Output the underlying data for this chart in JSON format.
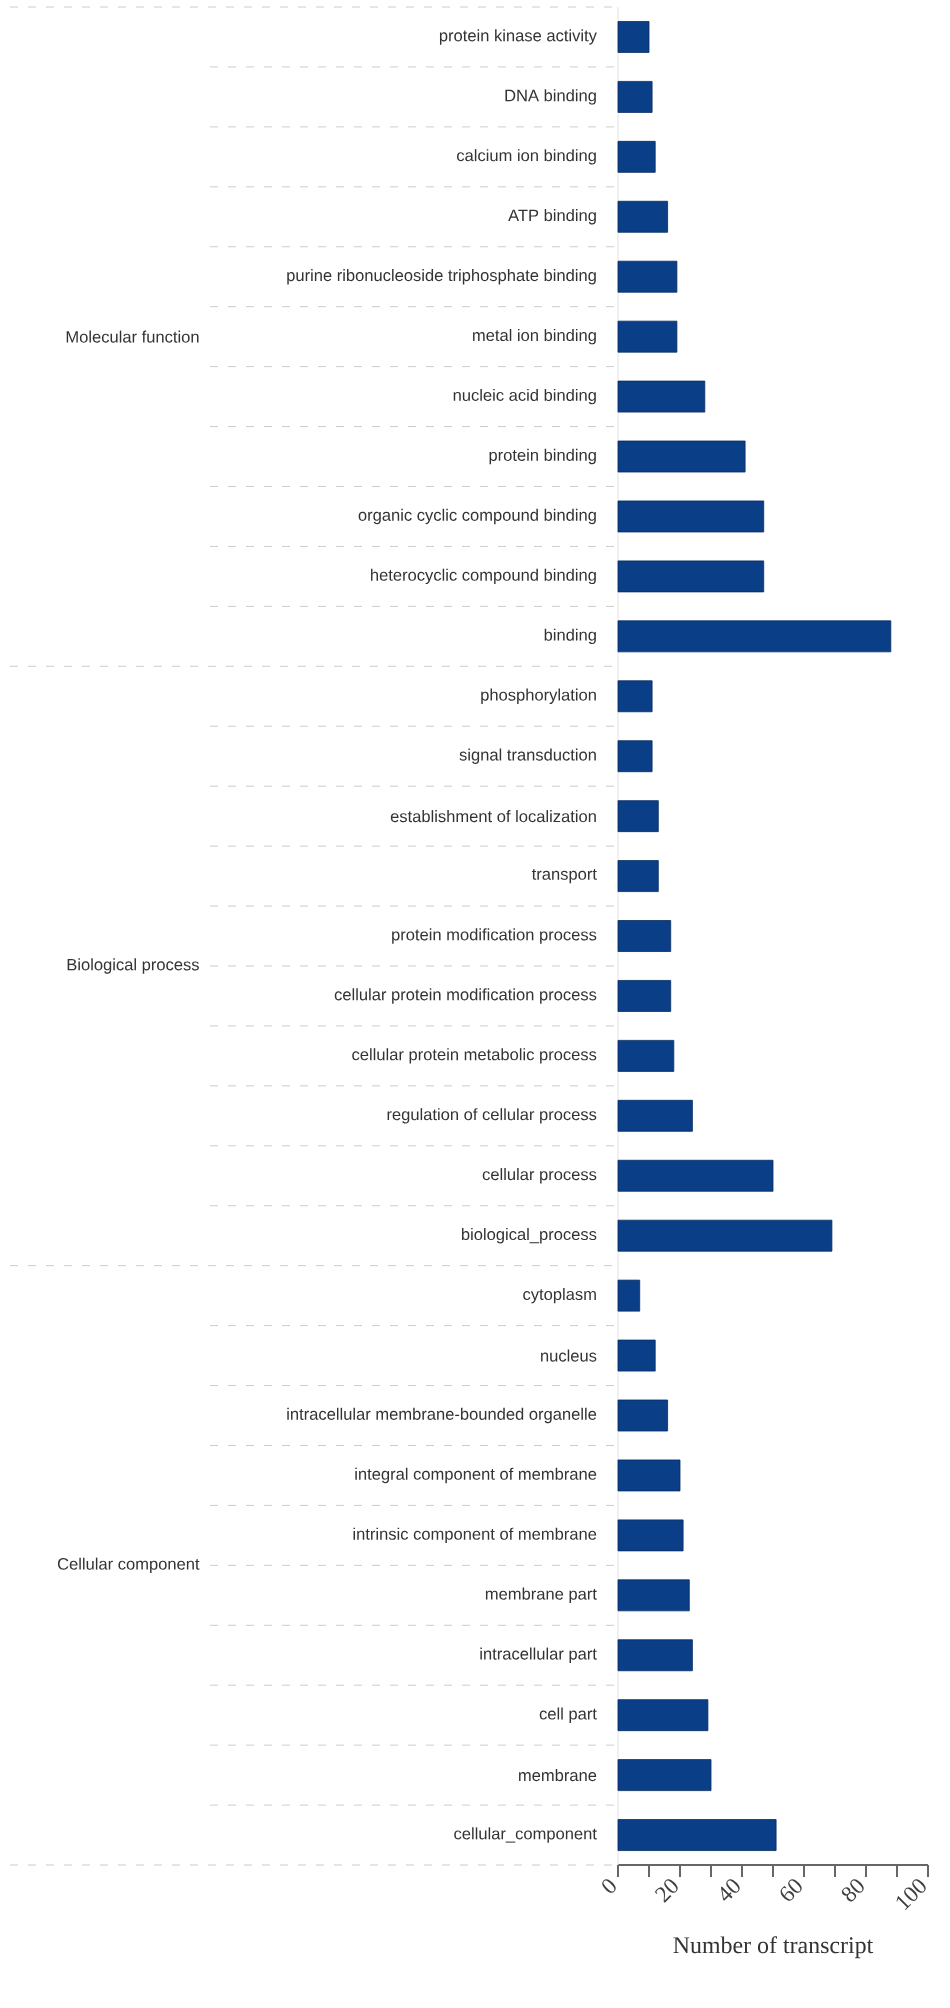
{
  "chart_data": {
    "type": "bar",
    "orientation": "horizontal",
    "xlabel": "Number of transcript",
    "categories": [
      "protein kinase activity",
      "DNA binding",
      "calcium ion binding",
      "ATP binding",
      "purine ribonucleoside triphosphate binding",
      "metal ion binding",
      "nucleic acid binding",
      "protein binding",
      "organic cyclic compound binding",
      "heterocyclic compound binding",
      "binding",
      "phosphorylation",
      "signal transduction",
      "establishment of localization",
      "transport",
      "protein modification process",
      "cellular protein modification process",
      "cellular protein metabolic process",
      "regulation of cellular process",
      "cellular process",
      "biological_process",
      "cytoplasm",
      "nucleus",
      "intracellular membrane-bounded organelle",
      "integral component of membrane",
      "intrinsic component of membrane",
      "membrane part",
      "intracellular part",
      "cell part",
      "membrane",
      "cellular_component"
    ],
    "values": [
      10,
      11,
      12,
      16,
      19,
      19,
      28,
      41,
      47,
      47,
      88,
      11,
      11,
      13,
      13,
      17,
      17,
      18,
      24,
      50,
      69,
      7,
      12,
      16,
      20,
      21,
      23,
      24,
      29,
      30,
      51
    ],
    "color": "#0a3f88",
    "xlim": [
      0,
      100
    ],
    "xticks": [
      0,
      {
        "value": 10,
        "label": null
      },
      20,
      {
        "value": 30,
        "label": null
      },
      40,
      {
        "value": 50,
        "label": null
      },
      60,
      {
        "value": 70,
        "label": null
      },
      80,
      {
        "value": 90,
        "label": null
      },
      100
    ],
    "annotations": [
      "Molecular function",
      "Biological process",
      "Cellular component"
    ]
  }
}
